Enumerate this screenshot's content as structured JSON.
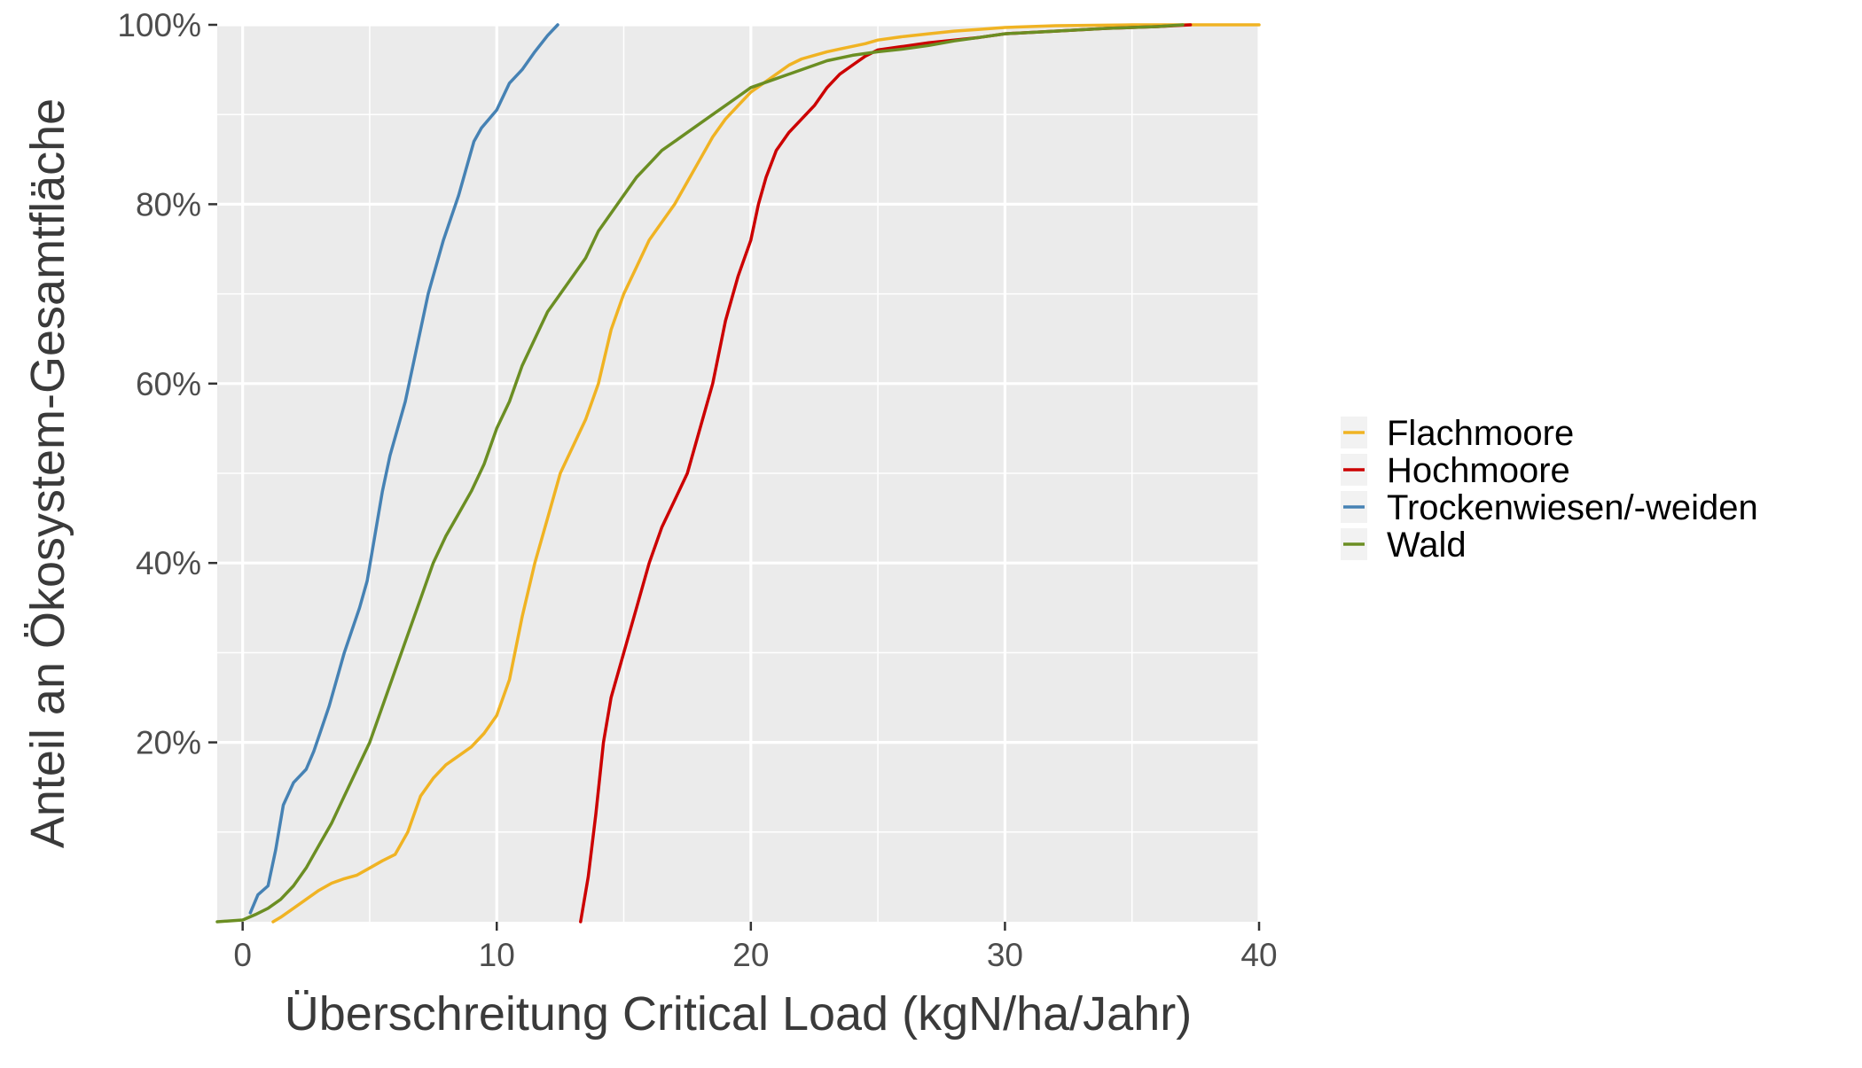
{
  "chart_data": {
    "type": "line",
    "title": "",
    "xlabel": "Überschreitung Critical Load (kgN/ha/Jahr)",
    "ylabel": "Anteil an Ökosystem-Gesamtfläche",
    "xlim": [
      -1,
      40
    ],
    "ylim": [
      0,
      100
    ],
    "x_ticks": [
      0,
      10,
      20,
      30,
      40
    ],
    "x_tick_labels": [
      "0",
      "10",
      "20",
      "30",
      "40"
    ],
    "y_ticks": [
      20,
      40,
      60,
      80,
      100
    ],
    "y_tick_labels": [
      "20%",
      "40%",
      "60%",
      "80%",
      "100%"
    ],
    "grid": true,
    "legend_position": "right",
    "colors": {
      "panel_background": "#ebebeb",
      "grid": "#ffffff"
    },
    "series": [
      {
        "name": "Flachmoore",
        "color": "#f0b323",
        "x": [
          1.2,
          1.5,
          2,
          2.5,
          3,
          3.5,
          4,
          4.5,
          5,
          5.5,
          6,
          6.5,
          7,
          7.5,
          8,
          8.5,
          9,
          9.5,
          10,
          10.5,
          11,
          11.5,
          12,
          12.5,
          13,
          13.5,
          14,
          14.5,
          15,
          15.5,
          16,
          16.5,
          17,
          17.5,
          18,
          18.5,
          19,
          19.5,
          20,
          20.5,
          21,
          21.5,
          22,
          22.5,
          23,
          23.5,
          24,
          24.5,
          25,
          26,
          27,
          28,
          29,
          30,
          32,
          35,
          38,
          40
        ],
        "y": [
          0,
          0.5,
          1.5,
          2.5,
          3.5,
          4.3,
          4.8,
          5.2,
          6,
          6.8,
          7.5,
          10,
          14,
          16,
          17.5,
          18.5,
          19.5,
          21,
          23,
          27,
          34,
          40,
          45,
          50,
          53,
          56,
          60,
          66,
          70,
          73,
          76,
          78,
          80,
          82.5,
          85,
          87.5,
          89.5,
          91,
          92.5,
          93.5,
          94.5,
          95.5,
          96.2,
          96.6,
          97,
          97.3,
          97.6,
          97.9,
          98.3,
          98.7,
          99,
          99.3,
          99.5,
          99.7,
          99.9,
          100,
          100,
          100
        ]
      },
      {
        "name": "Hochmoore",
        "color": "#cc0000",
        "x": [
          13.3,
          13.6,
          13.9,
          14.2,
          14.5,
          14.8,
          15.1,
          15.5,
          16,
          16.5,
          17,
          17.5,
          18,
          18.5,
          19,
          19.5,
          20,
          20.3,
          20.6,
          21,
          21.5,
          22,
          22.5,
          23,
          23.5,
          24,
          24.5,
          25,
          26,
          27,
          28,
          29,
          30,
          32,
          34,
          36,
          37.3
        ],
        "y": [
          0,
          5,
          12,
          20,
          25,
          28,
          31,
          35,
          40,
          44,
          47,
          50,
          55,
          60,
          67,
          72,
          76,
          80,
          83,
          86,
          88,
          89.5,
          91,
          93,
          94.5,
          95.5,
          96.5,
          97.2,
          97.6,
          98,
          98.3,
          98.6,
          99,
          99.3,
          99.6,
          99.8,
          100
        ]
      },
      {
        "name": "Trockenwiesen/-weiden",
        "color": "#4682b4",
        "x": [
          0.3,
          0.6,
          1,
          1.3,
          1.6,
          2,
          2.5,
          2.8,
          3.1,
          3.4,
          3.7,
          4,
          4.3,
          4.6,
          4.9,
          5.2,
          5.5,
          5.8,
          6.1,
          6.4,
          6.7,
          7,
          7.3,
          7.6,
          7.9,
          8.2,
          8.5,
          8.8,
          9.1,
          9.4,
          9.7,
          10,
          10.5,
          11,
          11.5,
          12,
          12.4
        ],
        "y": [
          1,
          3,
          4,
          8,
          13,
          15.5,
          17,
          19,
          21.5,
          24,
          27,
          30,
          32.5,
          35,
          38,
          43,
          48,
          52,
          55,
          58,
          62,
          66,
          70,
          73,
          76,
          78.5,
          81,
          84,
          87,
          88.5,
          89.5,
          90.5,
          93.5,
          95,
          97,
          98.8,
          100
        ]
      },
      {
        "name": "Wald",
        "color": "#6b8e23",
        "x": [
          -1,
          0,
          0.5,
          1,
          1.5,
          2,
          2.5,
          3,
          3.5,
          4,
          4.5,
          5,
          5.5,
          6,
          6.5,
          7,
          7.5,
          8,
          8.5,
          9,
          9.5,
          10,
          10.5,
          11,
          11.5,
          12,
          12.5,
          13,
          13.5,
          14,
          14.5,
          15,
          15.5,
          16,
          16.5,
          17,
          17.5,
          18,
          18.5,
          19,
          19.5,
          20,
          21,
          22,
          23,
          24,
          25,
          26,
          27,
          28,
          29,
          30,
          32,
          34,
          36,
          37
        ],
        "y": [
          0,
          0.2,
          0.8,
          1.5,
          2.5,
          4,
          6,
          8.5,
          11,
          14,
          17,
          20,
          24,
          28,
          32,
          36,
          40,
          43,
          45.5,
          48,
          51,
          55,
          58,
          62,
          65,
          68,
          70,
          72,
          74,
          77,
          79,
          81,
          83,
          84.5,
          86,
          87,
          88,
          89,
          90,
          91,
          92,
          93,
          94,
          95,
          96,
          96.6,
          97,
          97.3,
          97.7,
          98.2,
          98.6,
          99,
          99.3,
          99.6,
          99.8,
          100
        ]
      }
    ]
  }
}
